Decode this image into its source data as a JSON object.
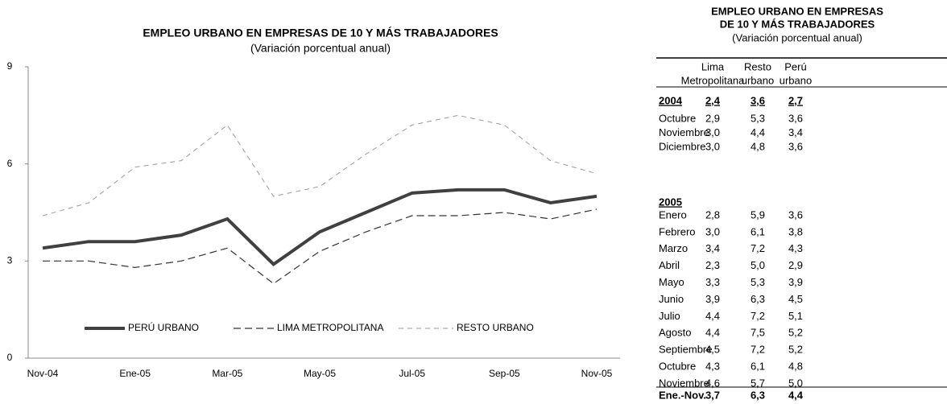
{
  "chart_data": {
    "type": "line",
    "title": "EMPLEO URBANO EN EMPRESAS DE 10 Y MÁS TRABAJADORES",
    "subtitle": "(Variación porcentual anual)",
    "categories": [
      "Nov-04",
      null,
      "Ene-05",
      null,
      "Mar-05",
      null,
      "May-05",
      null,
      "Jul-05",
      null,
      "Sep-05",
      null,
      "Nov-05"
    ],
    "series": [
      {
        "name": "PERÚ URBANO",
        "color": "#404040",
        "width": 4,
        "dash": "none",
        "values": [
          3.4,
          3.6,
          3.6,
          3.8,
          4.3,
          2.9,
          3.9,
          4.5,
          5.1,
          5.2,
          5.2,
          4.8,
          5.0
        ]
      },
      {
        "name": "LIMA METROPOLITANA",
        "color": "#333333",
        "width": 1.2,
        "dash": "9 5",
        "values": [
          3.0,
          3.0,
          2.8,
          3.0,
          3.4,
          2.3,
          3.3,
          3.9,
          4.4,
          4.4,
          4.5,
          4.3,
          4.6
        ]
      },
      {
        "name": "RESTO URBANO",
        "color": "#999999",
        "width": 1,
        "dash": "6 5",
        "values": [
          4.4,
          4.8,
          5.9,
          6.1,
          7.2,
          5.0,
          5.3,
          6.3,
          7.2,
          7.5,
          7.2,
          6.1,
          5.7
        ]
      }
    ],
    "ylim": [
      0,
      9
    ],
    "yticks": [
      0,
      3,
      6,
      9
    ],
    "grid": false,
    "legend": "bottom"
  },
  "table": {
    "title": [
      "EMPLEO URBANO EN EMPRESAS",
      "DE 10 Y  MÁS TRABAJADORES"
    ],
    "subtitle": "(Variación porcentual anual)",
    "columns": [
      [
        "Lima",
        "Metropolitana"
      ],
      [
        "Resto",
        "urbano"
      ],
      [
        "Perú",
        "urbano"
      ]
    ],
    "groups": [
      {
        "label": "2004",
        "values": [
          "2,4",
          "3,6",
          "2,7"
        ],
        "rows": [
          [
            "Octubre",
            "2,9",
            "5,3",
            "3,6"
          ],
          [
            "Noviembre",
            "3,0",
            "4,4",
            "3,4"
          ],
          [
            "Diciembre",
            "3,0",
            "4,8",
            "3,6"
          ]
        ]
      },
      {
        "label": "2005",
        "rows": [
          [
            "Enero",
            "2,8",
            "5,9",
            "3,6"
          ],
          [
            "Febrero",
            "3,0",
            "6,1",
            "3,8"
          ],
          [
            "Marzo",
            "3,4",
            "7,2",
            "4,3"
          ],
          [
            "Abril",
            "2,3",
            "5,0",
            "2,9"
          ],
          [
            "Mayo",
            "3,3",
            "5,3",
            "3,9"
          ],
          [
            "Junio",
            "3,9",
            "6,3",
            "4,5"
          ],
          [
            "Julio",
            "4,4",
            "7,2",
            "5,1"
          ],
          [
            "Agosto",
            "4,4",
            "7,5",
            "5,2"
          ],
          [
            "Septiembre",
            "4,5",
            "7,2",
            "5,2"
          ],
          [
            "Octubre",
            "4,3",
            "6,1",
            "4,8"
          ],
          [
            "Noviembre",
            "4,6",
            "5,7",
            "5,0"
          ]
        ]
      }
    ],
    "footer": [
      "Ene.-Nov.",
      "3,7",
      "6,3",
      "4,4"
    ]
  }
}
